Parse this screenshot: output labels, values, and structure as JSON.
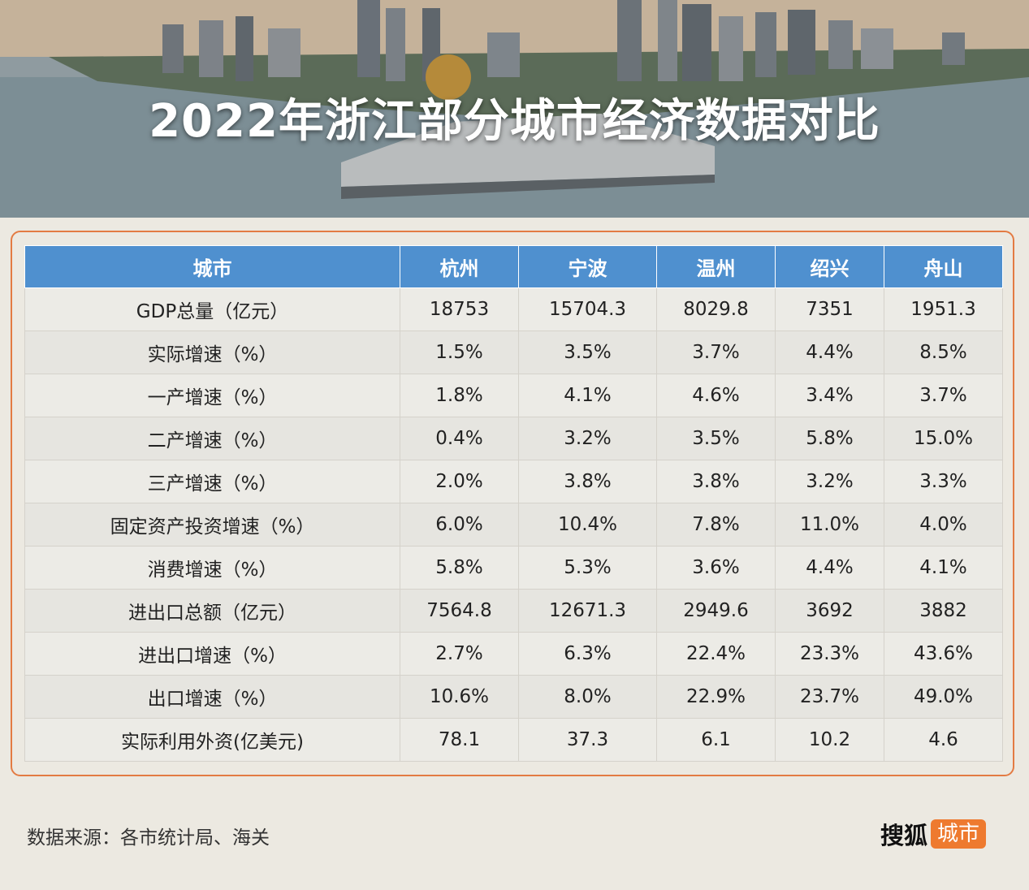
{
  "banner": {
    "title": "2022年浙江部分城市经济数据对比"
  },
  "chart_data": {
    "type": "table",
    "title": "2022年浙江部分城市经济数据对比",
    "columns": [
      "城市",
      "杭州",
      "宁波",
      "温州",
      "绍兴",
      "舟山"
    ],
    "rows": [
      [
        "GDP总量（亿元）",
        "18753",
        "15704.3",
        "8029.8",
        "7351",
        "1951.3"
      ],
      [
        "实际增速（%）",
        "1.5%",
        "3.5%",
        "3.7%",
        "4.4%",
        "8.5%"
      ],
      [
        "一产增速（%）",
        "1.8%",
        "4.1%",
        "4.6%",
        "3.4%",
        "3.7%"
      ],
      [
        "二产增速（%）",
        "0.4%",
        "3.2%",
        "3.5%",
        "5.8%",
        "15.0%"
      ],
      [
        "三产增速（%）",
        "2.0%",
        "3.8%",
        "3.8%",
        "3.2%",
        "3.3%"
      ],
      [
        "固定资产投资增速（%）",
        "6.0%",
        "10.4%",
        "7.8%",
        "11.0%",
        "4.0%"
      ],
      [
        "消费增速（%）",
        "5.8%",
        "5.3%",
        "3.6%",
        "4.4%",
        "4.1%"
      ],
      [
        "进出口总额（亿元）",
        "7564.8",
        "12671.3",
        "2949.6",
        "3692",
        "3882"
      ],
      [
        "进出口增速（%）",
        "2.7%",
        "6.3%",
        "22.4%",
        "23.3%",
        "43.6%"
      ],
      [
        "出口增速（%）",
        "10.6%",
        "8.0%",
        "22.9%",
        "23.7%",
        "49.0%"
      ],
      [
        "实际利用外资(亿美元)",
        "78.1",
        "37.3",
        "6.1",
        "10.2",
        "4.6"
      ]
    ]
  },
  "footer": {
    "source": "数据来源：各市统计局、海关",
    "logo_main": "搜狐",
    "logo_tag": "城市"
  },
  "colors": {
    "header_bg": "#4f90cf",
    "border_accent": "#e37b43",
    "logo_tag": "#ee7a2f"
  }
}
